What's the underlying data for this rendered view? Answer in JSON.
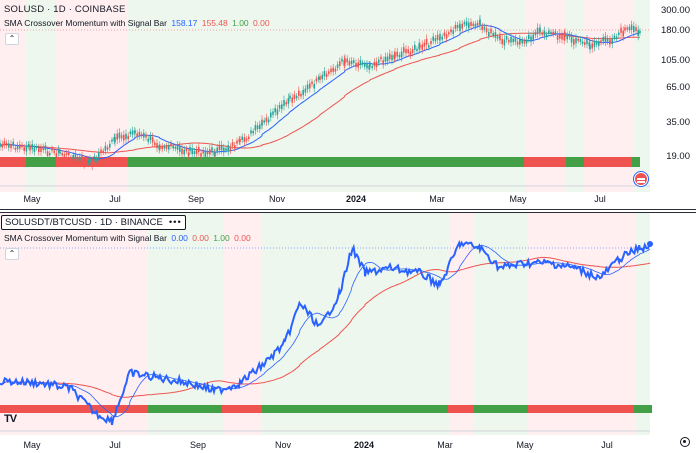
{
  "top_chart": {
    "title": "SOLUSD · 1D · COINBASE",
    "indicator": {
      "name": "SMA Crossover Momentum with Signal Bar",
      "values": [
        "158.17",
        "155.48",
        "1.00",
        "0.00"
      ]
    },
    "y_labels": [
      "300.00",
      "180.00",
      "105.00",
      "65.00",
      "35.00",
      "19.00"
    ],
    "x_labels": [
      "May",
      "Jul",
      "Sep",
      "Nov",
      "2024",
      "Mar",
      "May",
      "Jul"
    ],
    "colors": {
      "price": "#26a69a",
      "fast_sma": "#2962ff",
      "slow_sma": "#ef5350",
      "signal_green": "#43a047",
      "signal_red": "#ef5350",
      "bg_green": "#e8f5e9",
      "bg_red": "#ffebee"
    }
  },
  "bottom_chart": {
    "title": "SOLUSDT/BTCUSD · 1D · BINANCE",
    "indicator": {
      "name": "SMA Crossover Momentum with Signal Bar",
      "values": [
        "0.00",
        "0.00",
        "1.00",
        "0.00"
      ]
    },
    "x_labels": [
      "May",
      "Jul",
      "Sep",
      "Nov",
      "2024",
      "Mar",
      "May",
      "Jul"
    ],
    "colors": {
      "price": "#2962ff",
      "fast_sma": "#2962ff",
      "slow_sma": "#ef5350",
      "signal_green": "#43a047",
      "signal_red": "#ef5350",
      "bg_green": "#e8f5e9",
      "bg_red": "#ffebee"
    }
  },
  "icons": {
    "flag": "us-flag-icon",
    "logo": "tradingview-logo-icon",
    "settings": "settings-icon",
    "more": "more-dots-icon",
    "collapse": "chevron-up-icon"
  }
}
